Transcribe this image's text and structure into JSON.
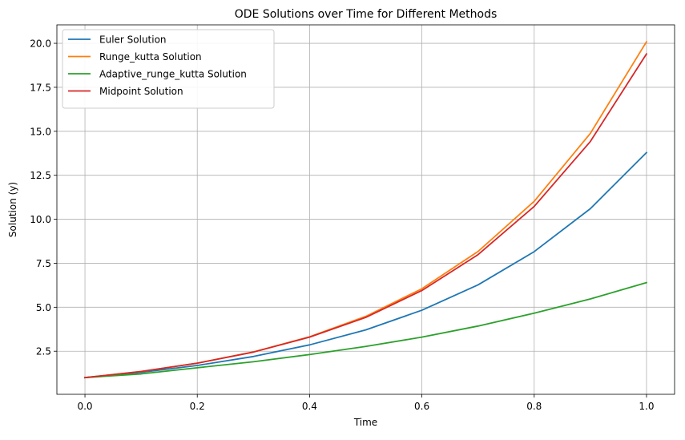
{
  "chart_data": {
    "type": "line",
    "title": "ODE Solutions over Time for Different Methods",
    "xlabel": "Time",
    "ylabel": "Solution (y)",
    "xlim": [
      -0.05,
      1.05
    ],
    "ylim": [
      0.05,
      21.05
    ],
    "grid": true,
    "legend_position": "upper left",
    "x_ticks": [
      0.0,
      0.2,
      0.4,
      0.6,
      0.8,
      1.0
    ],
    "x_tick_labels": [
      "0.0",
      "0.2",
      "0.4",
      "0.6",
      "0.8",
      "1.0"
    ],
    "y_ticks": [
      2.5,
      5.0,
      7.5,
      10.0,
      12.5,
      15.0,
      17.5,
      20.0
    ],
    "y_tick_labels": [
      "2.5",
      "5.0",
      "7.5",
      "10.0",
      "12.5",
      "15.0",
      "17.5",
      "20.0"
    ],
    "x": [
      0.0,
      0.1,
      0.2,
      0.3,
      0.4,
      0.5,
      0.6,
      0.7,
      0.8,
      0.9,
      1.0
    ],
    "series": [
      {
        "name": "Euler Solution",
        "color": "#1f77b4",
        "values": [
          1.0,
          1.3,
          1.69,
          2.2,
          2.86,
          3.71,
          4.83,
          6.27,
          8.16,
          10.6,
          13.79
        ]
      },
      {
        "name": "Runge_kutta Solution",
        "color": "#ff7f0e",
        "values": [
          1.0,
          1.35,
          1.82,
          2.46,
          3.32,
          4.48,
          6.05,
          8.17,
          11.02,
          14.88,
          20.09
        ]
      },
      {
        "name": "Adaptive_runge_kutta Solution",
        "color": "#2ca02c",
        "values": [
          1.0,
          1.21,
          1.56,
          1.9,
          2.31,
          2.77,
          3.3,
          3.93,
          4.66,
          5.47,
          6.4
        ]
      },
      {
        "name": "Midpoint Solution",
        "color": "#d62728",
        "values": [
          1.0,
          1.35,
          1.82,
          2.45,
          3.3,
          4.42,
          5.95,
          7.99,
          10.73,
          14.42,
          19.4
        ]
      }
    ]
  }
}
